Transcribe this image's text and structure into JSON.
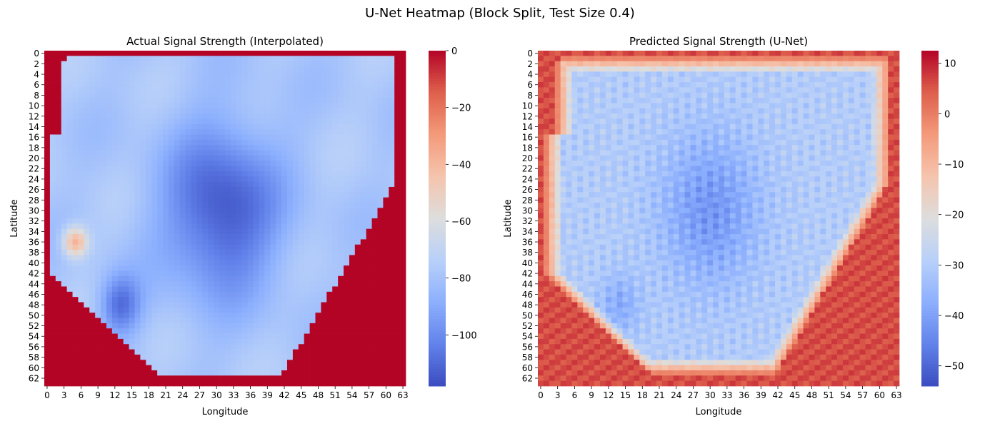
{
  "figure": {
    "title": "U-Net Heatmap (Block Split, Test Size 0.4)"
  },
  "chart_data": [
    {
      "type": "heatmap",
      "title": "Actual Signal Strength (Interpolated)",
      "xlabel": "Longitude",
      "ylabel": "Latitude",
      "grid_size": [
        64,
        64
      ],
      "x_ticks": [
        0,
        3,
        6,
        9,
        12,
        15,
        18,
        21,
        24,
        27,
        30,
        33,
        36,
        39,
        42,
        45,
        48,
        51,
        54,
        57,
        60,
        63
      ],
      "y_ticks": [
        0,
        2,
        4,
        6,
        8,
        10,
        12,
        14,
        16,
        18,
        20,
        22,
        24,
        26,
        28,
        30,
        32,
        34,
        36,
        38,
        40,
        42,
        44,
        46,
        48,
        50,
        52,
        54,
        56,
        58,
        60,
        62
      ],
      "colormap": "coolwarm",
      "vmin": -118,
      "vmax": 0,
      "colorbar_ticks": [
        0,
        -20,
        -40,
        -60,
        -80,
        -100
      ],
      "colorbar_tick_labels": [
        "0",
        "−20",
        "−40",
        "−60",
        "−80",
        "−100"
      ],
      "fill_value": 0,
      "background_value": -78,
      "features": [
        {
          "cx": 31,
          "cy": 30,
          "sx": 7,
          "sy": 11,
          "amp": -38
        },
        {
          "cx": 13,
          "cy": 48,
          "sx": 2.5,
          "sy": 4,
          "amp": -30
        },
        {
          "cx": 5,
          "cy": 36,
          "sx": 1.5,
          "sy": 2,
          "amp": 42
        }
      ]
    },
    {
      "type": "heatmap",
      "title": "Predicted Signal Strength (U-Net)",
      "xlabel": "Longitude",
      "ylabel": "Latitude",
      "grid_size": [
        64,
        64
      ],
      "x_ticks": [
        0,
        3,
        6,
        9,
        12,
        15,
        18,
        21,
        24,
        27,
        30,
        33,
        36,
        39,
        42,
        45,
        48,
        51,
        54,
        57,
        60,
        63
      ],
      "y_ticks": [
        0,
        2,
        4,
        6,
        8,
        10,
        12,
        14,
        16,
        18,
        20,
        22,
        24,
        26,
        28,
        30,
        32,
        34,
        36,
        38,
        40,
        42,
        44,
        46,
        48,
        50,
        52,
        54,
        56,
        58,
        60,
        62
      ],
      "colormap": "coolwarm",
      "vmin": -54,
      "vmax": 12.5,
      "colorbar_ticks": [
        10,
        0,
        -10,
        -20,
        -30,
        -40,
        -50
      ],
      "colorbar_tick_labels": [
        "10",
        "0",
        "−10",
        "−20",
        "−30",
        "−40",
        "−50"
      ],
      "fill_value": 6,
      "background_value": -30,
      "features": [
        {
          "cx": 30,
          "cy": 30,
          "sx": 6,
          "sy": 10,
          "amp": -12
        },
        {
          "cx": 14,
          "cy": 48,
          "sx": 2.5,
          "sy": 4,
          "amp": -8
        }
      ]
    }
  ]
}
